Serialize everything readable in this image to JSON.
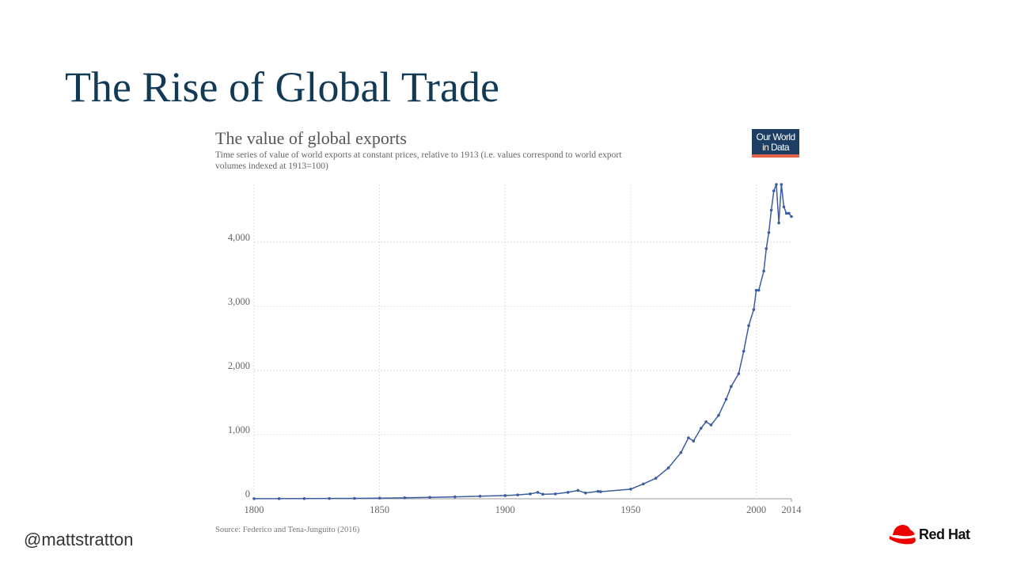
{
  "slide": {
    "title": "The Rise of Global Trade",
    "handle": "@mattstratton",
    "brand": "Red Hat"
  },
  "logo": {
    "lines": [
      "Our World",
      "in Data"
    ]
  },
  "chart_data": {
    "type": "line",
    "title": "The value of global exports",
    "subtitle": [
      "Time series of value of world exports at constant prices, relative to 1913 (i.e. values correspond to world export",
      "volumes indexed at 1913=100)"
    ],
    "source": "Source: Federico and Tena-Junguito (2016)",
    "color": "#3c5da0",
    "x": [
      1800,
      1810,
      1820,
      1830,
      1840,
      1850,
      1860,
      1870,
      1880,
      1890,
      1900,
      1905,
      1910,
      1913,
      1915,
      1920,
      1925,
      1929,
      1932,
      1937,
      1938,
      1950,
      1955,
      1960,
      1965,
      1970,
      1973,
      1975,
      1978,
      1980,
      1982,
      1985,
      1988,
      1990,
      1993,
      1995,
      1997,
      1999,
      2000,
      2001,
      2003,
      2004,
      2005,
      2006,
      2007,
      2008,
      2009,
      2010,
      2011,
      2012,
      2013,
      2014
    ],
    "values": [
      1.5,
      2,
      3,
      4,
      6,
      10,
      15,
      22,
      30,
      40,
      50,
      60,
      75,
      100,
      70,
      75,
      100,
      130,
      90,
      115,
      110,
      150,
      230,
      320,
      480,
      720,
      950,
      900,
      1100,
      1200,
      1150,
      1300,
      1550,
      1750,
      1950,
      2300,
      2700,
      2950,
      3250,
      3250,
      3550,
      3900,
      4150,
      4500,
      4800,
      4900,
      4300,
      4900,
      4550,
      4450,
      4450,
      4400
    ],
    "xlim": [
      1800,
      2014
    ],
    "xticks": [
      1800,
      1850,
      1900,
      1950,
      2000,
      2014
    ],
    "ylim": [
      0,
      4900
    ],
    "yticks": [
      0,
      {
        "value": 1000,
        "label": "1,000"
      },
      {
        "value": 2000,
        "label": "2,000"
      },
      {
        "value": 3000,
        "label": "3,000"
      },
      {
        "value": 4000,
        "label": "4,000"
      }
    ],
    "grid": true
  }
}
